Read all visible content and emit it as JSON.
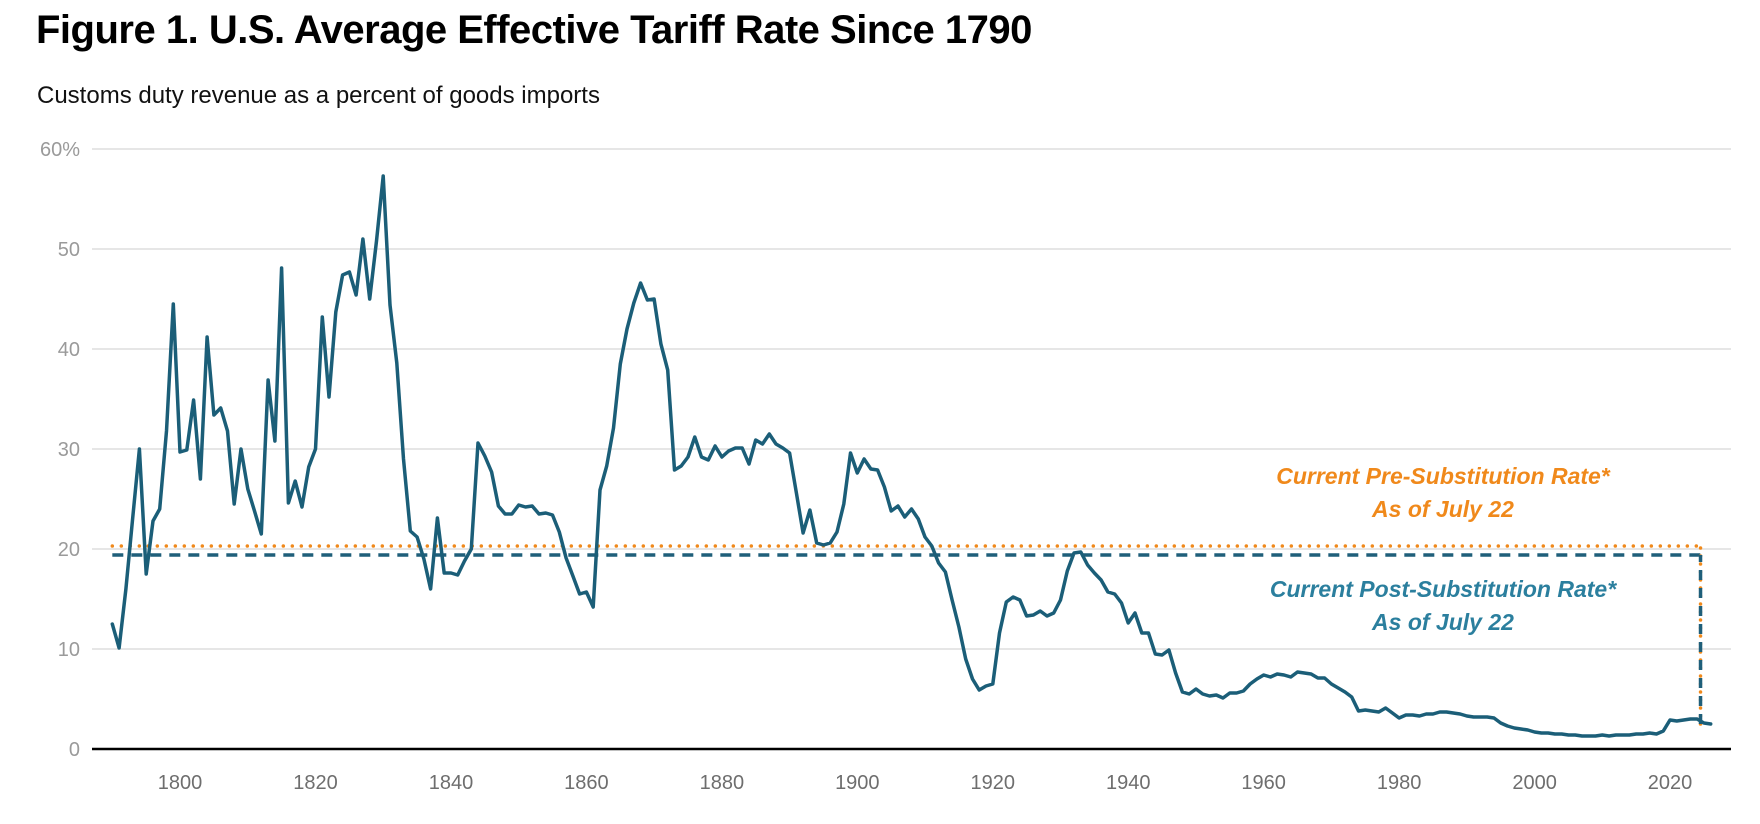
{
  "header": {
    "title": "Figure 1. U.S. Average Effective Tariff Rate Since 1790",
    "subtitle": "Customs duty revenue as a percent of goods imports"
  },
  "colors": {
    "series": "#1b5e78",
    "pre_rate": "#f0891b",
    "post_rate": "#1f5f7a",
    "post_label": "#2b7f9e",
    "grid": "#dddddd",
    "axis": "#000000"
  },
  "chart_data": {
    "type": "line",
    "title": "Figure 1. U.S. Average Effective Tariff Rate Since 1790",
    "subtitle": "Customs duty revenue as a percent of goods imports",
    "xlabel": "",
    "ylabel": "",
    "xlim": [
      1787,
      2029
    ],
    "ylim": [
      0,
      60
    ],
    "grid": true,
    "y_ticks": [
      0,
      10,
      20,
      30,
      40,
      50,
      60
    ],
    "y_tick_labels": [
      "0",
      "10",
      "20",
      "30",
      "40",
      "50",
      "60%"
    ],
    "x_ticks": [
      1800,
      1820,
      1840,
      1860,
      1880,
      1900,
      1920,
      1940,
      1960,
      1980,
      2000,
      2020
    ],
    "x_tick_labels": [
      "1800",
      "1820",
      "1840",
      "1860",
      "1880",
      "1900",
      "1920",
      "1940",
      "1960",
      "1980",
      "2000",
      "2020"
    ],
    "series": [
      {
        "name": "Average effective tariff rate",
        "x_start": 1790,
        "values": [
          12.5,
          10.1,
          16.0,
          23.0,
          30.0,
          17.5,
          22.8,
          24.0,
          31.8,
          44.5,
          29.7,
          29.9,
          34.9,
          27.0,
          41.2,
          33.4,
          34.1,
          31.8,
          24.5,
          30.0,
          26.0,
          23.8,
          21.5,
          36.9,
          30.8,
          48.1,
          24.6,
          26.8,
          24.2,
          28.2,
          30.0,
          43.2,
          35.2,
          43.7,
          47.4,
          47.7,
          45.4,
          51.0,
          45.0,
          50.8,
          57.3,
          44.4,
          38.6,
          29.0,
          21.8,
          21.2,
          19.0,
          16.0,
          23.1,
          17.6,
          17.6,
          17.4,
          18.8,
          20.0,
          30.6,
          29.3,
          27.7,
          24.3,
          23.5,
          23.5,
          24.4,
          24.2,
          24.3,
          23.5,
          23.6,
          23.4,
          21.7,
          19.1,
          17.3,
          15.5,
          15.7,
          14.2,
          25.9,
          28.3,
          32.1,
          38.5,
          42.0,
          44.6,
          46.6,
          44.9,
          45.0,
          40.5,
          37.9,
          27.9,
          28.3,
          29.2,
          31.2,
          29.2,
          28.9,
          30.3,
          29.2,
          29.8,
          30.1,
          30.1,
          28.5,
          30.9,
          30.5,
          31.5,
          30.5,
          30.1,
          29.6,
          25.6,
          21.6,
          23.9,
          20.6,
          20.4,
          20.6,
          21.7,
          24.5,
          29.6,
          27.6,
          29.0,
          28.0,
          27.9,
          26.2,
          23.8,
          24.3,
          23.2,
          24.0,
          23.0,
          21.2,
          20.3,
          18.6,
          17.7,
          14.9,
          12.2,
          9.0,
          7.0,
          5.9,
          6.3,
          6.5,
          11.6,
          14.7,
          15.2,
          14.9,
          13.3,
          13.4,
          13.8,
          13.3,
          13.6,
          14.9,
          17.8,
          19.6,
          19.7,
          18.4,
          17.6,
          16.9,
          15.7,
          15.5,
          14.6,
          12.6,
          13.6,
          11.6,
          11.6,
          9.5,
          9.4,
          9.9,
          7.6,
          5.7,
          5.5,
          6.0,
          5.5,
          5.3,
          5.4,
          5.1,
          5.6,
          5.6,
          5.8,
          6.5,
          7.0,
          7.4,
          7.2,
          7.5,
          7.4,
          7.2,
          7.7,
          7.6,
          7.5,
          7.1,
          7.1,
          6.5,
          6.1,
          5.7,
          5.2,
          3.8,
          3.9,
          3.8,
          3.7,
          4.1,
          3.6,
          3.1,
          3.4,
          3.4,
          3.3,
          3.5,
          3.5,
          3.7,
          3.7,
          3.6,
          3.5,
          3.3,
          3.2,
          3.2,
          3.2,
          3.1,
          2.6,
          2.3,
          2.1,
          2.0,
          1.9,
          1.7,
          1.6,
          1.6,
          1.5,
          1.5,
          1.4,
          1.4,
          1.3,
          1.3,
          1.3,
          1.4,
          1.3,
          1.4,
          1.4,
          1.4,
          1.5,
          1.5,
          1.6,
          1.5,
          1.8,
          2.9,
          2.8,
          2.9,
          3.0,
          3.0,
          2.6,
          2.5
        ]
      }
    ],
    "reference_lines": [
      {
        "name": "Current Pre-Substitution Rate",
        "value": 20.3,
        "style": "dotted",
        "color": "#f0891b",
        "label_line1": "Current Pre-Substitution Rate*",
        "label_line2": "As of July 22"
      },
      {
        "name": "Current Post-Substitution Rate",
        "value": 19.4,
        "style": "dashed",
        "color": "#1f5f7a",
        "label_line1": "Current Post-Substitution Rate*",
        "label_line2": "As of July 22"
      }
    ],
    "current_year_marker": 2024.5
  }
}
